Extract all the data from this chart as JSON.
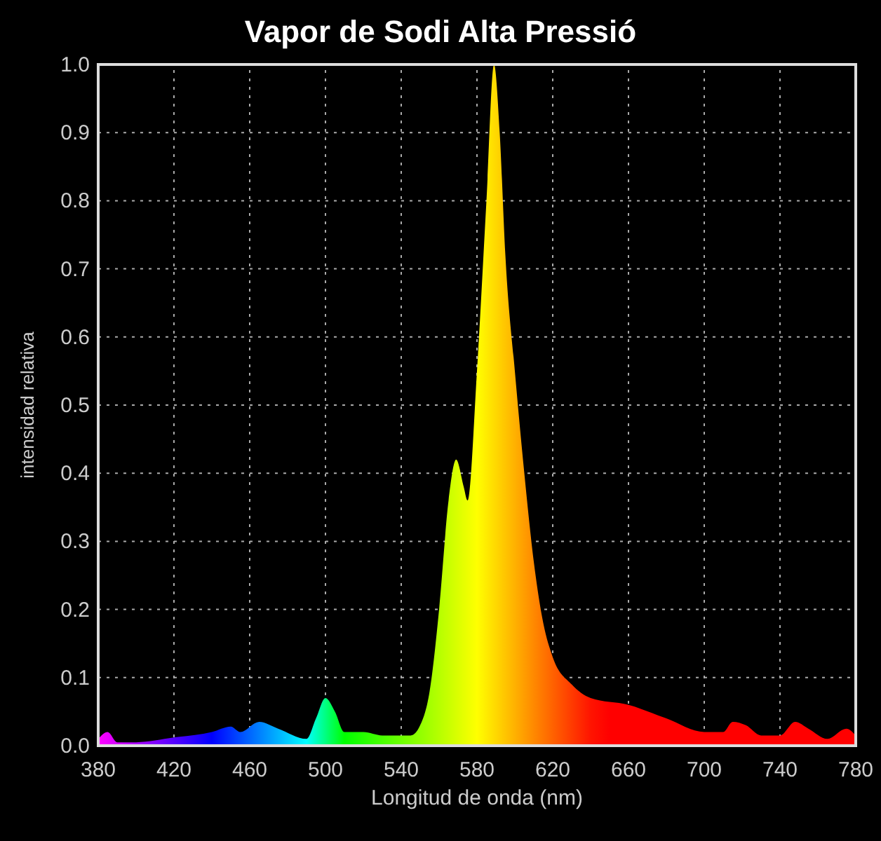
{
  "chart_data": {
    "type": "area",
    "title": "Vapor de Sodi Alta Pressió",
    "xlabel": "Longitud de onda (nm)",
    "ylabel": "intensidad relativa",
    "x": [
      380,
      385,
      390,
      400,
      420,
      440,
      450,
      455,
      465,
      475,
      490,
      495,
      500,
      505,
      510,
      520,
      530,
      545,
      550,
      555,
      560,
      565,
      569,
      573,
      575,
      580,
      585,
      589,
      592,
      595,
      600,
      605,
      610,
      615,
      620,
      630,
      640,
      660,
      680,
      700,
      710,
      715,
      722,
      730,
      740,
      748,
      755,
      765,
      775,
      780
    ],
    "series": [
      {
        "values": [
          0.01,
          0.02,
          0.005,
          0.005,
          0.012,
          0.02,
          0.028,
          0.02,
          0.035,
          0.025,
          0.01,
          0.04,
          0.07,
          0.05,
          0.02,
          0.02,
          0.015,
          0.015,
          0.03,
          0.08,
          0.2,
          0.36,
          0.42,
          0.38,
          0.36,
          0.55,
          0.8,
          1.0,
          0.9,
          0.72,
          0.55,
          0.4,
          0.27,
          0.18,
          0.13,
          0.09,
          0.07,
          0.06,
          0.04,
          0.02,
          0.02,
          0.035,
          0.03,
          0.015,
          0.015,
          0.035,
          0.025,
          0.01,
          0.025,
          0.015
        ]
      }
    ],
    "xlim": [
      380,
      780
    ],
    "xticks": [
      380,
      420,
      460,
      500,
      540,
      580,
      620,
      660,
      700,
      740,
      780
    ],
    "ylim": [
      0,
      1
    ],
    "yticks": [
      {
        "value": 0,
        "label": "0.0"
      },
      0.1,
      0.2,
      0.3,
      0.4,
      0.5,
      0.6,
      0.7,
      0.8,
      0.9,
      {
        "value": 1,
        "label": "1.0"
      }
    ],
    "grid": true,
    "line_style": "dotted"
  }
}
